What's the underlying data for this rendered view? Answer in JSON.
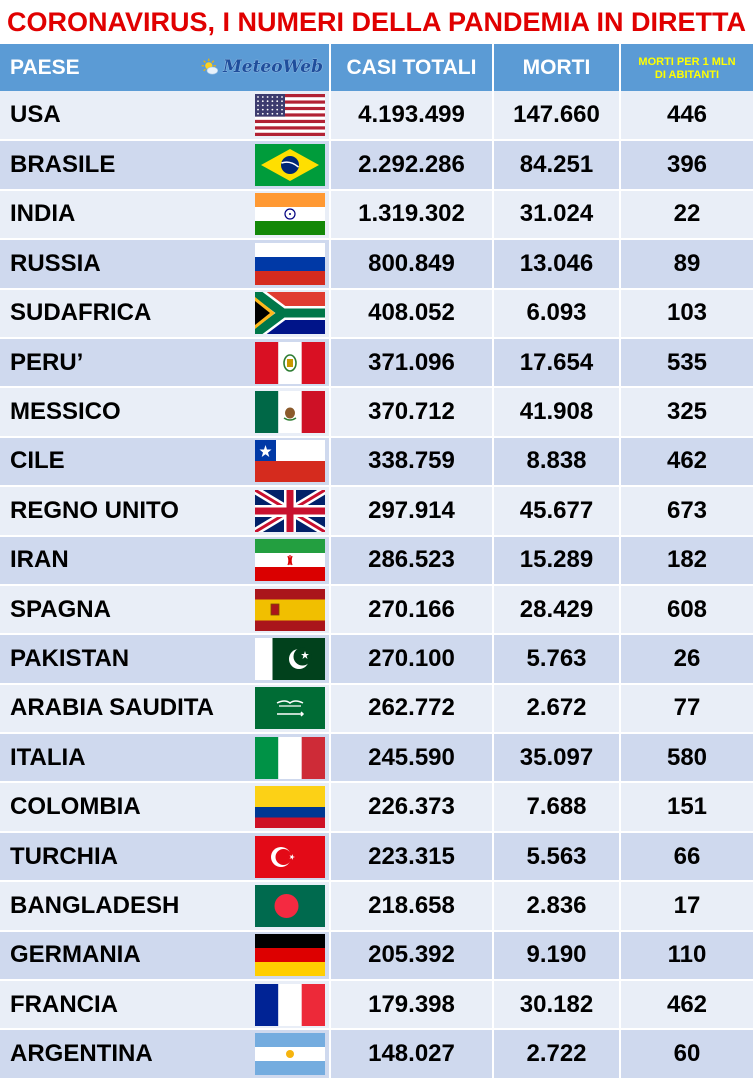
{
  "title": "CORONAVIRUS, I NUMERI DELLA PANDEMIA IN DIRETTA",
  "logo_text": "MeteoWeb",
  "headers": {
    "country": "PAESE",
    "cases": "CASI TOTALI",
    "deaths": "MORTI",
    "permil_line1": "MORTI PER 1 MLN",
    "permil_line2": "DI ABITANTI"
  },
  "colors": {
    "title": "#e00000",
    "header_bg": "#5b9bd5",
    "header_text": "#ffffff",
    "permil_header_text": "#ffff00",
    "row_odd": "#cfd9ee",
    "row_even": "#e9eef7"
  },
  "rows": [
    {
      "country": "USA",
      "flag": "usa-flag-icon",
      "cases": "4.193.499",
      "deaths": "147.660",
      "permil": "446"
    },
    {
      "country": "BRASILE",
      "flag": "brazil-flag-icon",
      "cases": "2.292.286",
      "deaths": "84.251",
      "permil": "396"
    },
    {
      "country": "INDIA",
      "flag": "india-flag-icon",
      "cases": "1.319.302",
      "deaths": "31.024",
      "permil": "22"
    },
    {
      "country": "RUSSIA",
      "flag": "russia-flag-icon",
      "cases": "800.849",
      "deaths": "13.046",
      "permil": "89"
    },
    {
      "country": "SUDAFRICA",
      "flag": "south-africa-flag-icon",
      "cases": "408.052",
      "deaths": "6.093",
      "permil": "103"
    },
    {
      "country": "PERU’",
      "flag": "peru-flag-icon",
      "cases": "371.096",
      "deaths": "17.654",
      "permil": "535"
    },
    {
      "country": "MESSICO",
      "flag": "mexico-flag-icon",
      "cases": "370.712",
      "deaths": "41.908",
      "permil": "325"
    },
    {
      "country": "CILE",
      "flag": "chile-flag-icon",
      "cases": "338.759",
      "deaths": "8.838",
      "permil": "462"
    },
    {
      "country": "REGNO UNITO",
      "flag": "uk-flag-icon",
      "cases": "297.914",
      "deaths": "45.677",
      "permil": "673"
    },
    {
      "country": "IRAN",
      "flag": "iran-flag-icon",
      "cases": "286.523",
      "deaths": "15.289",
      "permil": "182"
    },
    {
      "country": "SPAGNA",
      "flag": "spain-flag-icon",
      "cases": "270.166",
      "deaths": "28.429",
      "permil": "608"
    },
    {
      "country": "PAKISTAN",
      "flag": "pakistan-flag-icon",
      "cases": "270.100",
      "deaths": "5.763",
      "permil": "26"
    },
    {
      "country": "ARABIA SAUDITA",
      "flag": "saudi-arabia-flag-icon",
      "cases": "262.772",
      "deaths": "2.672",
      "permil": "77"
    },
    {
      "country": "ITALIA",
      "flag": "italy-flag-icon",
      "cases": "245.590",
      "deaths": "35.097",
      "permil": "580"
    },
    {
      "country": "COLOMBIA",
      "flag": "colombia-flag-icon",
      "cases": "226.373",
      "deaths": "7.688",
      "permil": "151"
    },
    {
      "country": "TURCHIA",
      "flag": "turkey-flag-icon",
      "cases": "223.315",
      "deaths": "5.563",
      "permil": "66"
    },
    {
      "country": "BANGLADESH",
      "flag": "bangladesh-flag-icon",
      "cases": "218.658",
      "deaths": "2.836",
      "permil": "17"
    },
    {
      "country": "GERMANIA",
      "flag": "germany-flag-icon",
      "cases": "205.392",
      "deaths": "9.190",
      "permil": "110"
    },
    {
      "country": "FRANCIA",
      "flag": "france-flag-icon",
      "cases": "179.398",
      "deaths": "30.182",
      "permil": "462"
    },
    {
      "country": "ARGENTINA",
      "flag": "argentina-flag-icon",
      "cases": "148.027",
      "deaths": "2.722",
      "permil": "60"
    }
  ]
}
